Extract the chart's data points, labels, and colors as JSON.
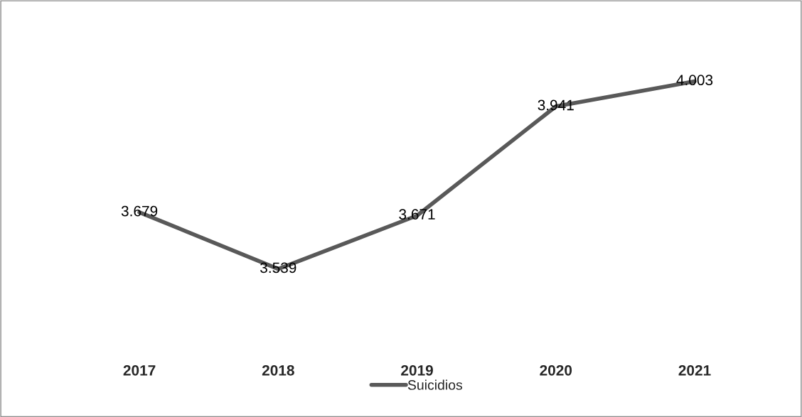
{
  "chart_data": {
    "type": "line",
    "categories": [
      "2017",
      "2018",
      "2019",
      "2020",
      "2021"
    ],
    "series": [
      {
        "name": "Suicidios",
        "color": "#595959",
        "values": [
          3679,
          3539,
          3671,
          3941,
          4003
        ],
        "value_labels": [
          "3.679",
          "3.539",
          "3.671",
          "3.941",
          "4.003"
        ]
      }
    ],
    "tick_labels": "x",
    "grid": false,
    "legend": "bottom",
    "marker": "none",
    "line_style": "solid"
  }
}
